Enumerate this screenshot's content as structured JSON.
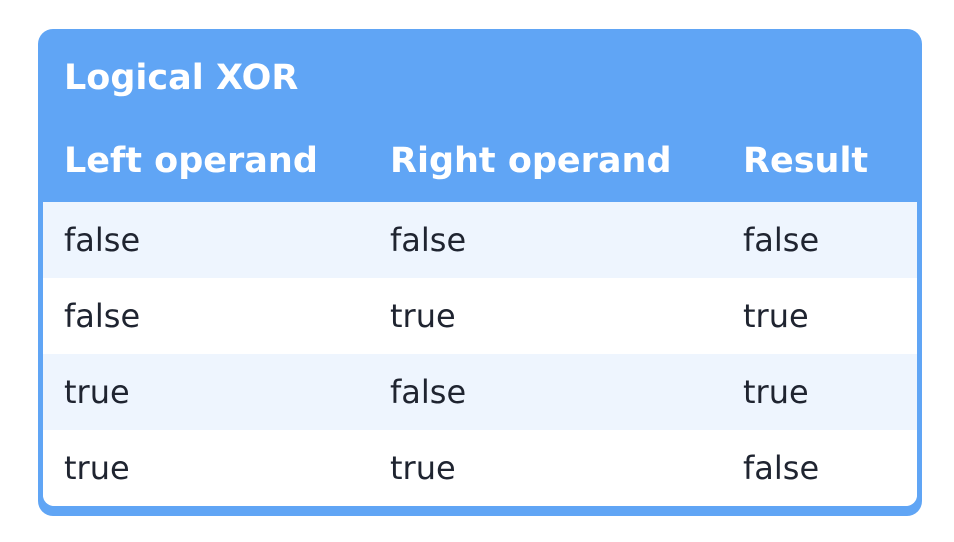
{
  "table": {
    "title": "Logical XOR",
    "columns": [
      "Left operand",
      "Right operand",
      "Result"
    ],
    "rows": [
      [
        "false",
        "false",
        "false"
      ],
      [
        "false",
        "true",
        "true"
      ],
      [
        "true",
        "false",
        "true"
      ],
      [
        "true",
        "true",
        "false"
      ]
    ]
  },
  "colors": {
    "header_background": "#60a5f5",
    "stripe_background": "#eef5fe",
    "header_text": "#ffffff",
    "body_text": "#1f2430"
  }
}
